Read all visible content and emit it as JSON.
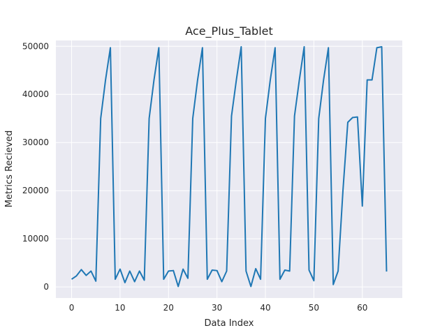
{
  "chart_data": {
    "type": "line",
    "title": "Ace_Plus_Tablet",
    "xlabel": "Data Index",
    "ylabel": "Metrics Recieved",
    "xlim": [
      -3.25,
      68.25
    ],
    "ylim": [
      -2300,
      51200
    ],
    "xticks": [
      0,
      10,
      20,
      30,
      40,
      50,
      60
    ],
    "yticks": [
      0,
      10000,
      20000,
      30000,
      40000,
      50000
    ],
    "grid": true,
    "background": "#eaeaf2",
    "line_color": "#1f77b4",
    "series": [
      {
        "x": [
          0,
          1,
          2,
          3,
          4,
          5,
          6,
          7,
          8,
          9,
          10,
          11,
          12,
          13,
          14,
          15,
          16,
          17,
          18,
          19,
          20,
          21,
          22,
          23,
          24,
          25,
          26,
          27,
          28,
          29,
          30,
          31,
          32,
          33,
          34,
          35,
          36,
          37,
          38,
          39,
          40,
          41,
          42,
          43,
          44,
          45,
          46,
          47,
          48,
          49,
          50,
          51,
          52,
          53,
          54,
          55,
          56,
          57,
          58,
          59,
          60,
          61,
          62,
          63,
          64,
          65
        ],
        "values": [
          1600,
          2300,
          3600,
          2400,
          3300,
          1200,
          35000,
          43000,
          49700,
          1600,
          3700,
          900,
          3300,
          1100,
          3300,
          1400,
          35000,
          43000,
          49700,
          1600,
          3300,
          3400,
          100,
          3700,
          1800,
          35000,
          43000,
          49700,
          1600,
          3500,
          3400,
          1100,
          3300,
          35500,
          43000,
          49900,
          3300,
          100,
          3800,
          1600,
          35000,
          43000,
          49700,
          1600,
          3500,
          3300,
          35500,
          43000,
          49900,
          3500,
          1300,
          35000,
          43000,
          49700,
          500,
          3300,
          20000,
          34200,
          35200,
          35300,
          16800,
          43000,
          43000,
          49700,
          49900,
          3200
        ]
      }
    ]
  }
}
